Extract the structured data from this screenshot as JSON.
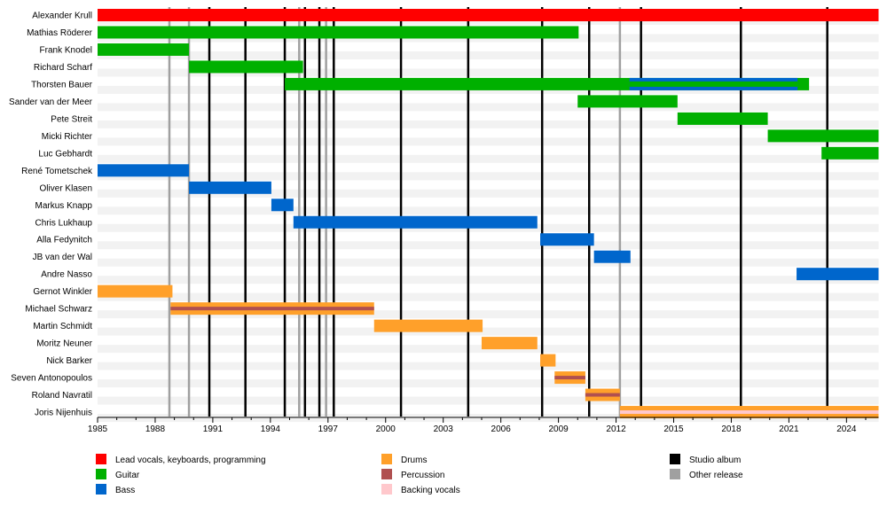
{
  "chart_data": {
    "type": "timeline",
    "x_range": [
      1985,
      2025.67
    ],
    "x_ticks": [
      "1985",
      "1988",
      "1991",
      "1994",
      "1997",
      "2000",
      "2003",
      "2006",
      "2009",
      "2012",
      "2015",
      "2018",
      "2021",
      "2024"
    ],
    "colors": {
      "Lead vocals, keyboards, programming": "#ff0000",
      "Guitar": "#00b000",
      "Bass": "#0066cc",
      "Drums": "#ffa02a",
      "Percussion": "#b05050",
      "Backing vocals": "#ffc8cc",
      "Studio album": "#000000",
      "Other release": "#a0a0a0"
    },
    "members": [
      {
        "name": "Alexander Krull",
        "bars": [
          {
            "role": "Lead vocals, keyboards, programming",
            "start": 1985,
            "end": 2025.67
          }
        ]
      },
      {
        "name": "Mathias Röderer",
        "bars": [
          {
            "role": "Guitar",
            "start": 1985,
            "end": 2010.05
          }
        ]
      },
      {
        "name": "Frank Knodel",
        "bars": [
          {
            "role": "Guitar",
            "start": 1985,
            "end": 1989.76
          }
        ]
      },
      {
        "name": "Richard Scharf",
        "bars": [
          {
            "role": "Guitar",
            "start": 1989.76,
            "end": 1995.7
          }
        ]
      },
      {
        "name": "Thorsten Bauer",
        "bars": [
          {
            "role": "Guitar",
            "start": 1994.75,
            "end": 2022.05
          },
          {
            "role": "Bass",
            "start": 2012.7,
            "end": 2021.45,
            "stripe": "Guitar"
          }
        ]
      },
      {
        "name": "Sander van der Meer",
        "bars": [
          {
            "role": "Guitar",
            "start": 2010.0,
            "end": 2015.2
          }
        ]
      },
      {
        "name": "Pete Streit",
        "bars": [
          {
            "role": "Guitar",
            "start": 2015.2,
            "end": 2019.9
          }
        ]
      },
      {
        "name": "Micki Richter",
        "bars": [
          {
            "role": "Guitar",
            "start": 2019.9,
            "end": 2025.67
          }
        ]
      },
      {
        "name": "Luc Gebhardt",
        "bars": [
          {
            "role": "Guitar",
            "start": 2022.7,
            "end": 2025.67
          }
        ]
      },
      {
        "name": "René Tometschek",
        "bars": [
          {
            "role": "Bass",
            "start": 1985,
            "end": 1989.76
          }
        ]
      },
      {
        "name": "Oliver Klasen",
        "bars": [
          {
            "role": "Bass",
            "start": 1989.76,
            "end": 1994.05
          }
        ]
      },
      {
        "name": "Markus Knapp",
        "bars": [
          {
            "role": "Bass",
            "start": 1994.05,
            "end": 1995.2
          }
        ]
      },
      {
        "name": "Chris Lukhaup",
        "bars": [
          {
            "role": "Bass",
            "start": 1995.2,
            "end": 2007.9
          }
        ]
      },
      {
        "name": "Alla Fedynitch",
        "bars": [
          {
            "role": "Bass",
            "start": 2008.05,
            "end": 2010.85
          }
        ]
      },
      {
        "name": "JB van der Wal",
        "bars": [
          {
            "role": "Bass",
            "start": 2010.85,
            "end": 2012.75
          }
        ]
      },
      {
        "name": "Andre Nasso",
        "bars": [
          {
            "role": "Bass",
            "start": 2021.4,
            "end": 2025.67
          }
        ]
      },
      {
        "name": "Gernot Winkler",
        "bars": [
          {
            "role": "Drums",
            "start": 1985,
            "end": 1988.9
          }
        ]
      },
      {
        "name": "Michael Schwarz",
        "bars": [
          {
            "role": "Drums",
            "start": 1988.8,
            "end": 1999.4,
            "stripe": "Percussion"
          }
        ]
      },
      {
        "name": "Martin Schmidt",
        "bars": [
          {
            "role": "Drums",
            "start": 1999.4,
            "end": 2005.05
          }
        ]
      },
      {
        "name": "Moritz Neuner",
        "bars": [
          {
            "role": "Drums",
            "start": 2005.0,
            "end": 2007.9
          }
        ]
      },
      {
        "name": "Nick Barker",
        "bars": [
          {
            "role": "Drums",
            "start": 2008.05,
            "end": 2008.85
          }
        ]
      },
      {
        "name": "Seven Antonopoulos",
        "bars": [
          {
            "role": "Drums",
            "start": 2008.8,
            "end": 2010.4,
            "stripe": "Percussion"
          }
        ]
      },
      {
        "name": "Roland Navratil",
        "bars": [
          {
            "role": "Drums",
            "start": 2010.4,
            "end": 2012.2,
            "stripe": "Percussion"
          }
        ]
      },
      {
        "name": "Joris Nijenhuis",
        "bars": [
          {
            "role": "Drums",
            "start": 2012.2,
            "end": 2025.67,
            "stripe": "Backing vocals"
          }
        ]
      }
    ],
    "studio_albums": [
      1990.82,
      1992.7,
      1994.75,
      1995.8,
      1996.55,
      1997.3,
      2000.8,
      2004.3,
      2008.15,
      2010.6,
      2013.3,
      2018.5,
      2023.0
    ],
    "other_releases": [
      1988.74,
      1989.76,
      1995.5,
      1996.9,
      2012.2
    ],
    "legend": [
      [
        "Lead vocals, keyboards, programming",
        "Guitar",
        "Bass"
      ],
      [
        "Drums",
        "Percussion",
        "Backing vocals"
      ],
      [
        "Studio album",
        "Other release"
      ]
    ]
  }
}
